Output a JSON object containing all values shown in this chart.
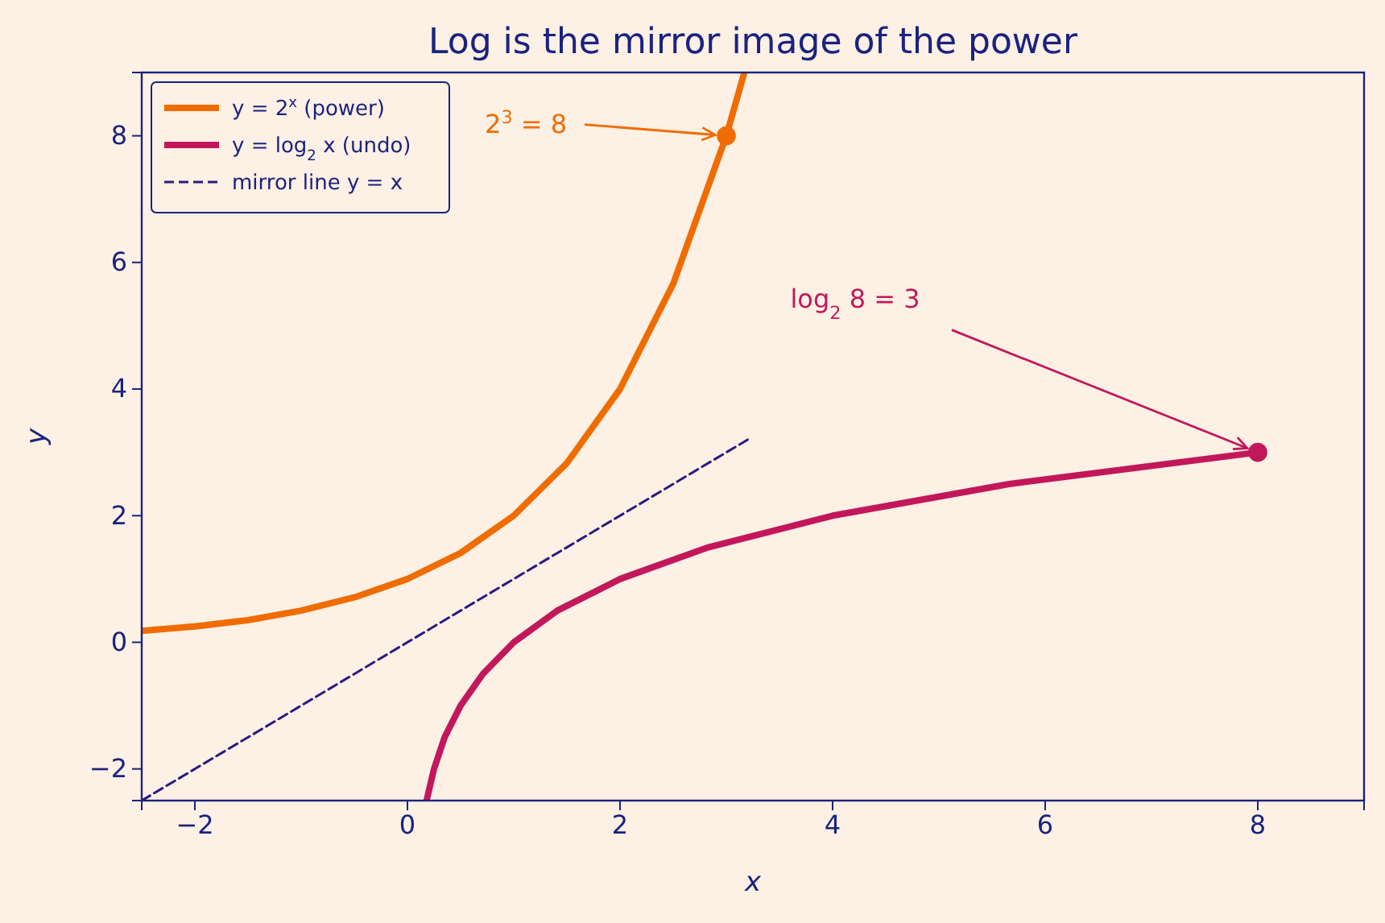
{
  "chart_data": {
    "type": "line",
    "title": "Log is the mirror image of the power",
    "xlabel": "x",
    "ylabel": "y",
    "xlim": [
      -2.5,
      9
    ],
    "ylim": [
      -2.5,
      9
    ],
    "xticks": [
      {
        "value": -2,
        "label": "−2"
      },
      0,
      2,
      4,
      6,
      8
    ],
    "yticks": [
      {
        "value": -2,
        "label": "−2"
      },
      0,
      2,
      4,
      6,
      8
    ],
    "grid": false,
    "legend": "top left",
    "marker": "none",
    "series": [
      {
        "name": "y = 2$^{x}$ (power)",
        "color": "#ef6c00",
        "x": [
          -2.5,
          -2,
          -1.5,
          -1,
          -0.5,
          0,
          0.5,
          1,
          1.5,
          2,
          2.5,
          3,
          3.17
        ],
        "values": [
          0.18,
          0.25,
          0.35,
          0.5,
          0.71,
          1,
          1.41,
          2,
          2.83,
          4,
          5.66,
          8,
          9
        ]
      },
      {
        "name": "y = log$_{2}$ x (undo)",
        "color": "#c2185b",
        "x": [
          0.18,
          0.25,
          0.35,
          0.5,
          0.71,
          1,
          1.41,
          2,
          2.83,
          4,
          5.66,
          8
        ],
        "values": [
          -2.5,
          -2,
          -1.5,
          -1,
          -0.5,
          0,
          0.5,
          1,
          1.5,
          2,
          2.5,
          3
        ]
      },
      {
        "name": "mirror line y = x",
        "color": "#2a1a80",
        "line_style": "dashed",
        "x": [
          -2.5,
          3.2
        ],
        "values": [
          -2.5,
          3.2
        ]
      },
      {
        "type": "scatter",
        "marker": "circle",
        "colors": [
          "#ef6c00",
          "#c2185b"
        ],
        "x": [
          3,
          8
        ],
        "values": [
          8,
          3
        ]
      }
    ],
    "annotations": [
      {
        "text": "2$^{3}$ = 8",
        "x": 3,
        "y": 8
      },
      {
        "text": "log$_{2}$ 8 = 3",
        "x": 8,
        "y": 3
      }
    ]
  }
}
